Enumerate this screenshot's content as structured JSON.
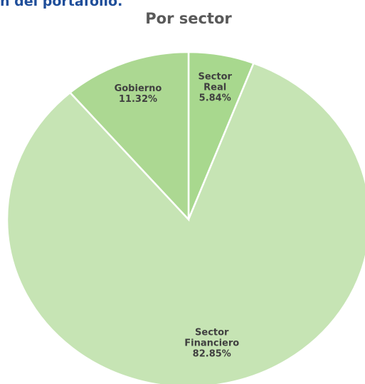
{
  "header": "n del portafolio.",
  "chart_data": {
    "type": "pie",
    "title": "Por sector",
    "categories": [
      "Sector Real",
      "Sector Financiero",
      "Gobierno"
    ],
    "values": [
      5.84,
      82.85,
      11.32
    ],
    "value_labels": [
      "5.84%",
      "82.85%",
      "11.32%"
    ],
    "colors": [
      "#a8d88e",
      "#c6e4b4",
      "#acd892"
    ]
  }
}
